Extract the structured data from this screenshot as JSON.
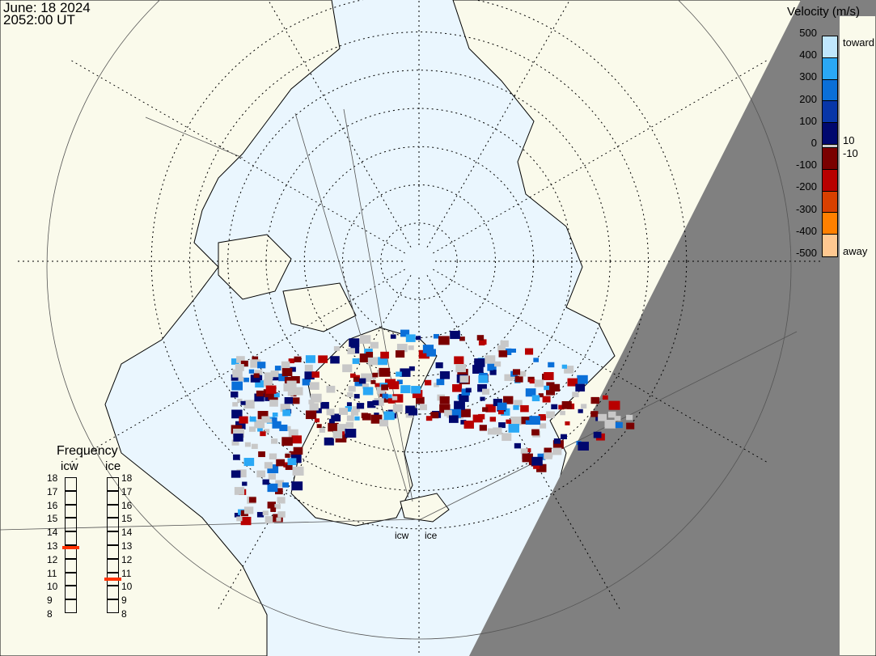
{
  "header": {
    "date": "June: 18 2024",
    "time": "2052:00 UT"
  },
  "velocity_legend": {
    "title": "Velocity (m/s)",
    "ticks": [
      "500",
      "400",
      "300",
      "200",
      "100",
      "0",
      "-100",
      "-200",
      "-300",
      "-400",
      "-500"
    ],
    "toward_label": "toward",
    "away_label": "away",
    "threshold_pos": "10",
    "threshold_neg": "-10",
    "colors": [
      "#bfe6fd",
      "#2aa8f5",
      "#0a6fd8",
      "#0836a8",
      "#00086e",
      "#cccccc",
      "#7a0000",
      "#b80000",
      "#d84000",
      "#ff8000",
      "#ffc890"
    ]
  },
  "frequency_panel": {
    "title": "Frequency",
    "radars": [
      {
        "name": "icw",
        "value_mhz": 12.8
      },
      {
        "name": "ice",
        "value_mhz": 10.5
      }
    ],
    "ticks": [
      "18",
      "17",
      "16",
      "15",
      "14",
      "13",
      "12",
      "11",
      "10",
      "9",
      "8"
    ],
    "marker_color": "#ff3300"
  },
  "map": {
    "radar_labels": [
      "icw",
      "ice"
    ],
    "ocean_color": "#eaf6fe",
    "land_color": "#fafaeb",
    "night_color": "#808080"
  }
}
